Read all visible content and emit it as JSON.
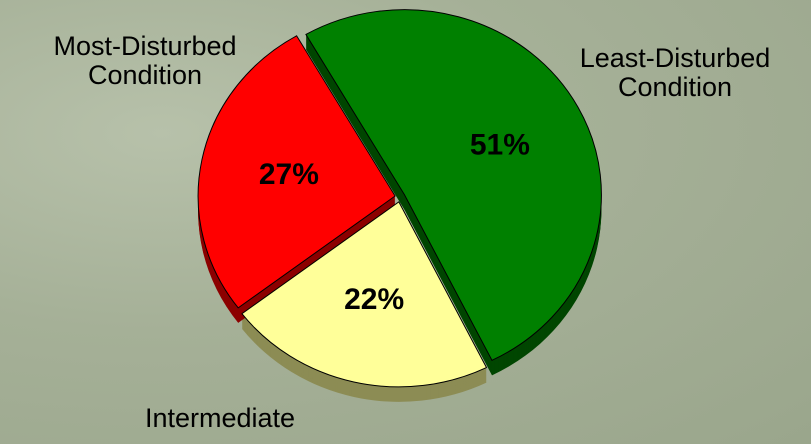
{
  "chart_data": {
    "type": "pie",
    "categories": [
      "Least-Disturbed Condition",
      "Intermediate",
      "Most-Disturbed Condition"
    ],
    "values": [
      51,
      22,
      27
    ],
    "value_labels": [
      "51%",
      "22%",
      "27%"
    ],
    "colors": [
      "#008000",
      "#ffff99",
      "#ff0000"
    ]
  }
}
